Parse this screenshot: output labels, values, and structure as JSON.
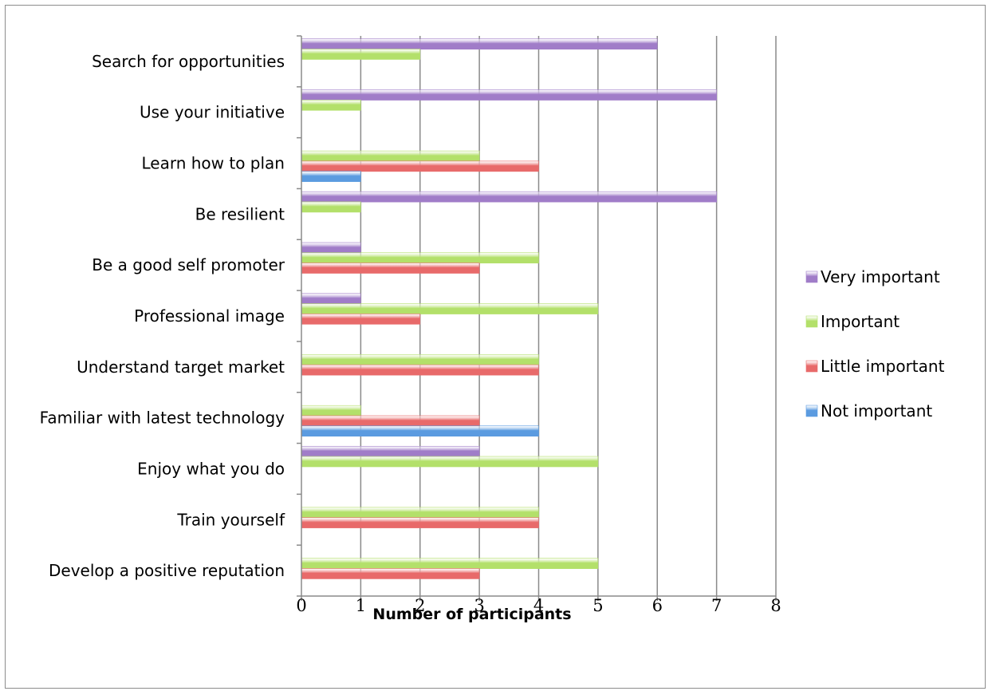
{
  "chart_data": {
    "type": "bar",
    "orientation": "horizontal",
    "title": "",
    "xlabel": "Number of participants",
    "ylabel": "",
    "xlim": [
      0,
      8
    ],
    "xticks": [
      "0",
      "1",
      "2",
      "3",
      "4",
      "5",
      "6",
      "7",
      "8"
    ],
    "grid": "vertical-major",
    "legend_position": "right",
    "categories": [
      "Search for opportunities",
      "Use your initiative",
      "Learn how to plan",
      "Be resilient",
      "Be a good self promoter",
      "Professional image",
      "Understand target market",
      "Familiar with latest technology",
      "Enjoy what you do",
      "Train yourself",
      "Develop a positive reputation"
    ],
    "series": [
      {
        "name": "Very important",
        "color": "#a07cc8",
        "values": [
          6,
          7,
          0,
          7,
          1,
          1,
          0,
          0,
          3,
          0,
          0
        ]
      },
      {
        "name": "Important",
        "color": "#b3e06a",
        "values": [
          2,
          1,
          3,
          1,
          4,
          5,
          4,
          1,
          5,
          4,
          5
        ]
      },
      {
        "name": "Little important",
        "color": "#e86a6a",
        "values": [
          0,
          0,
          4,
          0,
          3,
          2,
          4,
          3,
          0,
          4,
          3
        ]
      },
      {
        "name": "Not important",
        "color": "#5b9be0",
        "values": [
          0,
          0,
          1,
          0,
          0,
          0,
          0,
          4,
          0,
          0,
          0
        ]
      }
    ]
  }
}
